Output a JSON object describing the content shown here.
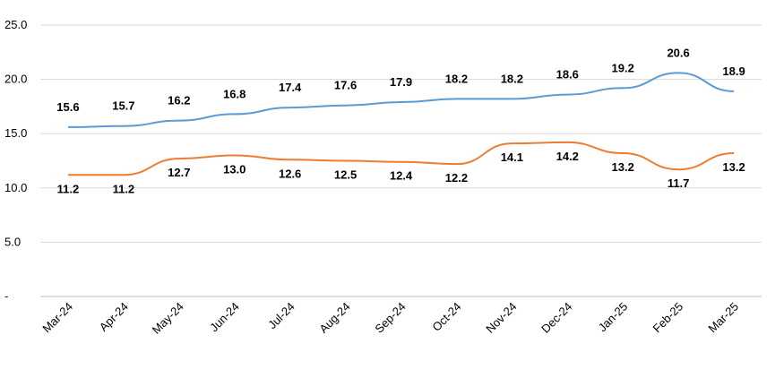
{
  "chart_data": {
    "type": "line",
    "categories": [
      "Mar-24",
      "Apr-24",
      "May-24",
      "Jun-24",
      "Jul-24",
      "Aug-24",
      "Sep-24",
      "Oct-24",
      "Nov-24",
      "Dec-24",
      "Jan-25",
      "Feb-25",
      "Mar-25"
    ],
    "ylim": [
      0,
      25
    ],
    "yticks": [
      {
        "value": 0,
        "label": "-"
      },
      {
        "value": 5,
        "label": "5.0"
      },
      {
        "value": 10,
        "label": "10.0"
      },
      {
        "value": 15,
        "label": "15.0"
      },
      {
        "value": 20,
        "label": "20.0"
      },
      {
        "value": 25,
        "label": "25.0"
      }
    ],
    "grid": true,
    "legend": "none",
    "series": [
      {
        "color": "#5b9bd5",
        "label_position": "above",
        "values": [
          15.6,
          15.7,
          16.2,
          16.8,
          17.4,
          17.6,
          17.9,
          18.2,
          18.2,
          18.6,
          19.2,
          20.6,
          18.9
        ],
        "labels": [
          "15.6",
          "15.7",
          "16.2",
          "16.8",
          "17.4",
          "17.6",
          "17.9",
          "18.2",
          "18.2",
          "18.6",
          "19.2",
          "20.6",
          "18.9"
        ]
      },
      {
        "color": "#ed7d31",
        "label_position": "mixed",
        "values": [
          11.2,
          11.2,
          12.7,
          13.0,
          12.6,
          12.5,
          12.4,
          12.2,
          14.1,
          14.2,
          13.2,
          11.7,
          13.2
        ],
        "labels": [
          "11.2",
          "11.2",
          "12.7",
          "13.0",
          "12.6",
          "12.5",
          "12.4",
          "12.2",
          "14.1",
          "14.2",
          "13.2",
          "11.7",
          "13.2"
        ],
        "label_sides": [
          "below",
          "below",
          "below",
          "below",
          "below",
          "below",
          "below",
          "below",
          "below",
          "below",
          "below",
          "below",
          "below"
        ]
      }
    ]
  }
}
